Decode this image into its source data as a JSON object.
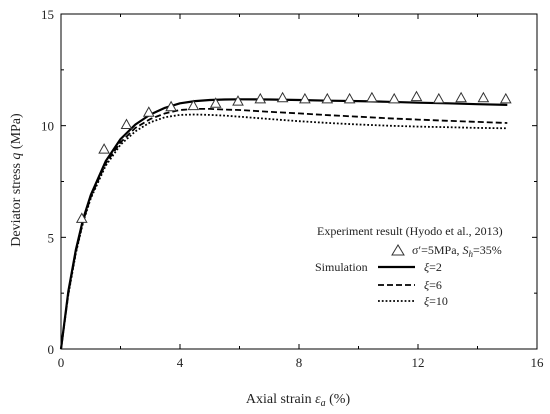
{
  "chart_data": {
    "type": "line",
    "xlabel": {
      "text": "Axial strain ",
      "symbol": "ε",
      "subscript": "a",
      "unit": " (%)"
    },
    "ylabel": {
      "text": "Deviator stress ",
      "symbol": "q",
      "unit": " (MPa)"
    },
    "xlim": [
      0,
      16
    ],
    "ylim": [
      0,
      15
    ],
    "xticks": [
      0,
      4,
      8,
      12,
      16
    ],
    "yticks": [
      0,
      5,
      10,
      15
    ],
    "grid": false,
    "legend": {
      "placement": "bottom-right",
      "experiment_header": "Experiment result (Hyodo et al., 2013)",
      "experiment_label": "σ′=5MPa, ",
      "experiment_label_sub": "S",
      "experiment_label_subscript": "h",
      "experiment_label_tail": "=35%",
      "simulation_header": "Simulation",
      "xi_symbol": "ξ"
    },
    "series": [
      {
        "name": "σ′=5MPa, Sh=35%",
        "kind": "experiment",
        "marker": "triangle",
        "x": [
          0.7,
          1.45,
          2.2,
          2.95,
          3.7,
          4.45,
          5.2,
          5.95,
          6.7,
          7.45,
          8.2,
          8.95,
          9.7,
          10.45,
          11.2,
          11.95,
          12.7,
          13.45,
          14.2,
          14.95
        ],
        "y": [
          5.85,
          8.95,
          10.05,
          10.6,
          10.85,
          10.9,
          11.0,
          11.1,
          11.2,
          11.25,
          11.2,
          11.2,
          11.2,
          11.25,
          11.2,
          11.3,
          11.2,
          11.25,
          11.25,
          11.2
        ]
      },
      {
        "name": "ξ=2",
        "kind": "simulation",
        "dash": "solid",
        "legend_value": "=2",
        "x": [
          0,
          0.25,
          0.5,
          0.75,
          1.0,
          1.5,
          2.0,
          2.5,
          3.0,
          3.5,
          4.0,
          4.5,
          5.0,
          5.5,
          6.0,
          7.0,
          8.0,
          9.0,
          10.0,
          11.0,
          12.0,
          13.0,
          14.0,
          15.0
        ],
        "y": [
          0,
          2.6,
          4.45,
          5.85,
          6.9,
          8.4,
          9.4,
          10.05,
          10.5,
          10.8,
          11.0,
          11.1,
          11.15,
          11.17,
          11.18,
          11.17,
          11.15,
          11.12,
          11.1,
          11.07,
          11.03,
          11.0,
          10.96,
          10.93
        ]
      },
      {
        "name": "ξ=6",
        "kind": "simulation",
        "dash": "dashed",
        "legend_value": "=6",
        "x": [
          0,
          0.25,
          0.5,
          0.75,
          1.0,
          1.5,
          2.0,
          2.5,
          3.0,
          3.5,
          4.0,
          4.5,
          5.0,
          5.5,
          6.0,
          7.0,
          8.0,
          9.0,
          10.0,
          11.0,
          12.0,
          13.0,
          14.0,
          15.0
        ],
        "y": [
          0,
          2.5,
          4.35,
          5.75,
          6.8,
          8.3,
          9.25,
          9.9,
          10.3,
          10.55,
          10.7,
          10.75,
          10.75,
          10.72,
          10.7,
          10.62,
          10.55,
          10.47,
          10.4,
          10.33,
          10.27,
          10.22,
          10.17,
          10.12
        ]
      },
      {
        "name": "ξ=10",
        "kind": "simulation",
        "dash": "dotted",
        "legend_value": "=10",
        "x": [
          0,
          0.25,
          0.5,
          0.75,
          1.0,
          1.5,
          2.0,
          2.5,
          3.0,
          3.5,
          4.0,
          4.5,
          5.0,
          5.5,
          6.0,
          7.0,
          8.0,
          9.0,
          10.0,
          11.0,
          12.0,
          13.0,
          14.0,
          15.0
        ],
        "y": [
          0,
          2.45,
          4.3,
          5.7,
          6.75,
          8.2,
          9.15,
          9.75,
          10.15,
          10.38,
          10.48,
          10.5,
          10.48,
          10.45,
          10.4,
          10.3,
          10.2,
          10.12,
          10.05,
          10.0,
          9.96,
          9.93,
          9.9,
          9.88
        ]
      }
    ]
  }
}
